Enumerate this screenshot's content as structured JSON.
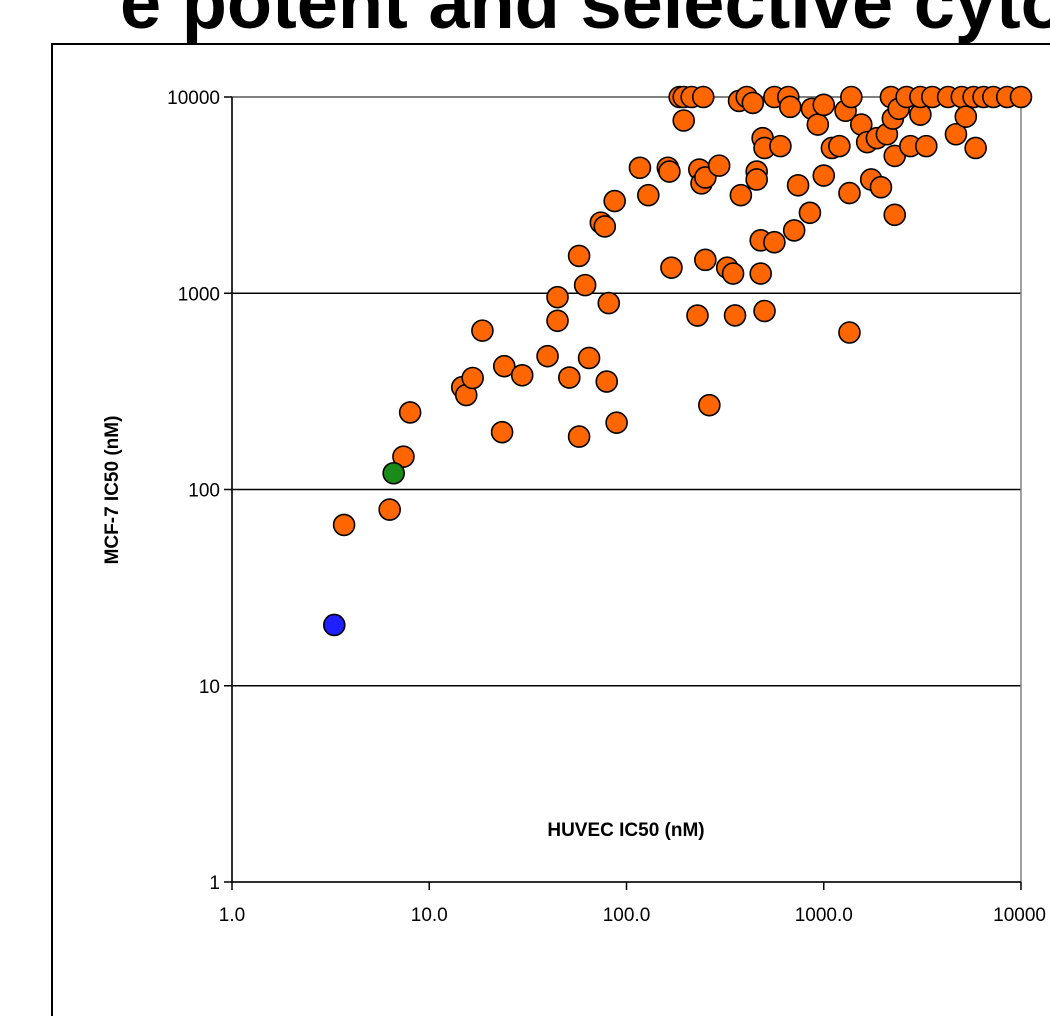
{
  "chart_data": {
    "type": "scatter",
    "title": "",
    "xlabel": "HUVEC IC50 (nM)",
    "ylabel": "MCF-7 IC50 (nM)",
    "x_scale": "log",
    "y_scale": "log",
    "xlim": [
      1,
      10000
    ],
    "ylim": [
      1,
      10000
    ],
    "x_tick_labels": [
      "1.0",
      "10.0",
      "100.0",
      "1000.0",
      "10000"
    ],
    "y_tick_labels": [
      "1",
      "10",
      "100",
      "1000",
      "10000"
    ],
    "grid": "horizontal",
    "colors": {
      "orange": "#ff6600",
      "green": "#1a8a1a",
      "blue": "#1f1fff"
    },
    "series": [
      {
        "color": "orange",
        "points": [
          [
            3.7,
            66
          ],
          [
            6.3,
            79
          ],
          [
            7.4,
            147
          ],
          [
            8.0,
            247
          ],
          [
            14.7,
            332
          ],
          [
            15.4,
            303
          ],
          [
            16.6,
            370
          ],
          [
            18.6,
            645
          ],
          [
            23.4,
            196
          ],
          [
            24.0,
            425
          ],
          [
            29.6,
            382
          ],
          [
            39.8,
            478
          ],
          [
            44.7,
            955
          ],
          [
            44.7,
            724
          ],
          [
            51.3,
            372
          ],
          [
            57.5,
            1550
          ],
          [
            57.5,
            186
          ],
          [
            61.7,
            1100
          ],
          [
            64.6,
            468
          ],
          [
            74.1,
            2290
          ],
          [
            77.6,
            2190
          ],
          [
            79.4,
            355
          ],
          [
            81.3,
            891
          ],
          [
            87.1,
            2950
          ],
          [
            89.1,
            219
          ],
          [
            117,
            4360
          ],
          [
            129,
            3160
          ],
          [
            162,
            4360
          ],
          [
            165,
            4170
          ],
          [
            169,
            1350
          ],
          [
            186,
            10000
          ],
          [
            195,
            10000
          ],
          [
            214,
            10000
          ],
          [
            195,
            7590
          ],
          [
            229,
            770
          ],
          [
            234,
            4270
          ],
          [
            240,
            3630
          ],
          [
            245,
            10000
          ],
          [
            251,
            3890
          ],
          [
            251,
            1480
          ],
          [
            263,
            269
          ],
          [
            295,
            4470
          ],
          [
            324,
            1350
          ],
          [
            347,
            1260
          ],
          [
            355,
            771
          ],
          [
            372,
            9550
          ],
          [
            380,
            3160
          ],
          [
            407,
            10000
          ],
          [
            437,
            9330
          ],
          [
            457,
            4170
          ],
          [
            457,
            3800
          ],
          [
            479,
            1860
          ],
          [
            479,
            1260
          ],
          [
            490,
            6170
          ],
          [
            501,
            5500
          ],
          [
            501,
            812
          ],
          [
            562,
            10000
          ],
          [
            562,
            1820
          ],
          [
            603,
            5620
          ],
          [
            661,
            10000
          ],
          [
            676,
            8910
          ],
          [
            708,
            2090
          ],
          [
            741,
            3550
          ],
          [
            851,
            2570
          ],
          [
            871,
            8710
          ],
          [
            933,
            7240
          ],
          [
            1000,
            9120
          ],
          [
            1000,
            3980
          ],
          [
            1100,
            5500
          ],
          [
            1200,
            5620
          ],
          [
            1290,
            8510
          ],
          [
            1350,
            3240
          ],
          [
            1350,
            631
          ],
          [
            1380,
            10000
          ],
          [
            1550,
            7240
          ],
          [
            1660,
            5890
          ],
          [
            1740,
            3800
          ],
          [
            1860,
            6170
          ],
          [
            1950,
            3470
          ],
          [
            2090,
            6460
          ],
          [
            2190,
            10000
          ],
          [
            2240,
            7760
          ],
          [
            2290,
            2510
          ],
          [
            2290,
            5010
          ],
          [
            2400,
            8710
          ],
          [
            2630,
            10000
          ],
          [
            2750,
            5620
          ],
          [
            3090,
            8130
          ],
          [
            3090,
            10000
          ],
          [
            3310,
            5620
          ],
          [
            3550,
            10000
          ],
          [
            4270,
            10000
          ],
          [
            4680,
            6460
          ],
          [
            5010,
            10000
          ],
          [
            5250,
            7940
          ],
          [
            5890,
            5500
          ],
          [
            5750,
            10000
          ],
          [
            6460,
            10000
          ],
          [
            7240,
            10000
          ],
          [
            8510,
            10000
          ],
          [
            10000,
            10000
          ]
        ]
      },
      {
        "color": "green",
        "points": [
          [
            6.6,
            121
          ]
        ]
      },
      {
        "color": "blue",
        "points": [
          [
            3.3,
            20.4
          ]
        ]
      }
    ]
  }
}
